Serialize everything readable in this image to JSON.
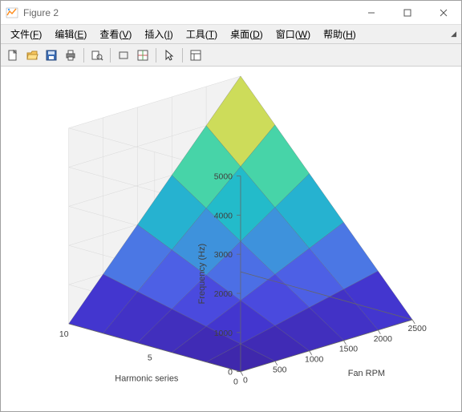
{
  "window": {
    "title": "Figure 2",
    "icon_colors": {
      "top": "#4da6ff",
      "bottom": "#ff8c1a"
    }
  },
  "menus": [
    "文件(F)",
    "编辑(E)",
    "查看(V)",
    "插入(I)",
    "工具(T)",
    "桌面(D)",
    "窗口(W)",
    "帮助(H)"
  ],
  "toolbar": {
    "items": [
      "new",
      "open",
      "save",
      "print",
      "sep",
      "print-preview",
      "sep",
      "rect",
      "layout",
      "sep",
      "pointer",
      "sep",
      "inspector"
    ]
  },
  "chart": {
    "type": "surface3d",
    "background_color": "#ffffff",
    "axes_grid_color": "#d9d9d9",
    "axes_pane_color": "#f2f2f2",
    "tick_fontcolor": "#404040",
    "tick_fontsize": 10.5,
    "label_fontcolor": "#404040",
    "label_fontsize": 11,
    "x": {
      "label": "Fan RPM",
      "lim": [
        0,
        2500
      ],
      "ticks": [
        0,
        500,
        1000,
        1500,
        2000,
        2500
      ]
    },
    "y": {
      "label": "Harmonic series",
      "lim": [
        0,
        10
      ],
      "ticks": [
        0,
        5,
        10
      ]
    },
    "z": {
      "label": "Frequency (Hz)",
      "lim": [
        0,
        5000
      ],
      "ticks": [
        0,
        1000,
        2000,
        3000,
        4000,
        5000
      ]
    },
    "surface": {
      "comment": "z = (x/2500) * (y/10) * 5000 sampled on a coarse grid; colored by height with parula-like colormap",
      "colormap": [
        "#3e26a8",
        "#4336cf",
        "#4e55e6",
        "#4b78e4",
        "#3c97db",
        "#25b3cf",
        "#1fc7c1",
        "#4ad5a6",
        "#92dc7e",
        "#d3dc56",
        "#fedc2d",
        "#f9fb0e"
      ],
      "opacity": 1.0,
      "mesh_line_color": "#666666",
      "mesh_line_width": 0.3,
      "x_values": [
        0,
        500,
        1000,
        1500,
        2000,
        2500
      ],
      "y_values": [
        0,
        2,
        4,
        6,
        8,
        10
      ]
    },
    "view": {
      "azimuth": -37.5,
      "elevation": 30
    }
  }
}
